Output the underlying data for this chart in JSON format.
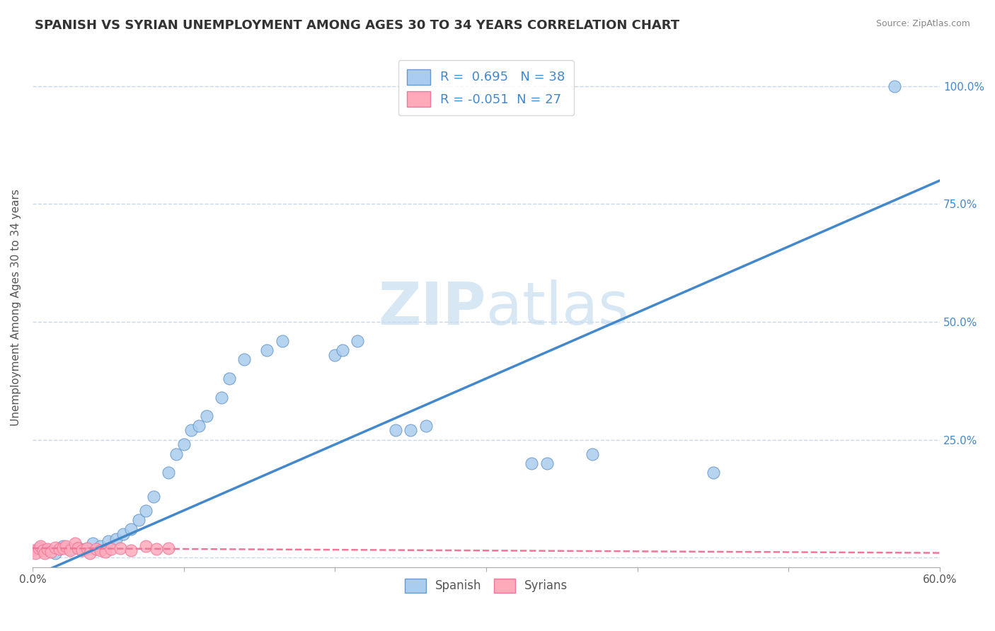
{
  "title": "SPANISH VS SYRIAN UNEMPLOYMENT AMONG AGES 30 TO 34 YEARS CORRELATION CHART",
  "source": "Source: ZipAtlas.com",
  "ylabel": "Unemployment Among Ages 30 to 34 years",
  "xlim": [
    0.0,
    0.6
  ],
  "ylim": [
    -0.02,
    1.08
  ],
  "xticks": [
    0.0,
    0.1,
    0.2,
    0.3,
    0.4,
    0.5,
    0.6
  ],
  "xticklabels": [
    "0.0%",
    "",
    "",
    "",
    "",
    "",
    "60.0%"
  ],
  "ytick_positions": [
    0.0,
    0.25,
    0.5,
    0.75,
    1.0
  ],
  "yticklabels": [
    "",
    "25.0%",
    "50.0%",
    "75.0%",
    "100.0%"
  ],
  "spanish_R": 0.695,
  "spanish_N": 38,
  "syrian_R": -0.051,
  "syrian_N": 27,
  "spanish_x": [
    0.005,
    0.01,
    0.015,
    0.02,
    0.025,
    0.03,
    0.035,
    0.04,
    0.045,
    0.05,
    0.055,
    0.06,
    0.065,
    0.07,
    0.075,
    0.08,
    0.09,
    0.095,
    0.1,
    0.105,
    0.11,
    0.115,
    0.125,
    0.13,
    0.14,
    0.155,
    0.165,
    0.2,
    0.205,
    0.215,
    0.24,
    0.25,
    0.26,
    0.33,
    0.34,
    0.37,
    0.45,
    0.57
  ],
  "spanish_y": [
    0.02,
    0.015,
    0.01,
    0.025,
    0.018,
    0.022,
    0.018,
    0.03,
    0.025,
    0.035,
    0.04,
    0.05,
    0.06,
    0.08,
    0.1,
    0.13,
    0.18,
    0.22,
    0.24,
    0.27,
    0.28,
    0.3,
    0.34,
    0.38,
    0.42,
    0.44,
    0.46,
    0.43,
    0.44,
    0.46,
    0.27,
    0.27,
    0.28,
    0.2,
    0.2,
    0.22,
    0.18,
    1.0
  ],
  "syrian_x": [
    0.0,
    0.002,
    0.004,
    0.005,
    0.007,
    0.008,
    0.01,
    0.012,
    0.015,
    0.018,
    0.02,
    0.022,
    0.025,
    0.028,
    0.03,
    0.033,
    0.036,
    0.038,
    0.042,
    0.045,
    0.048,
    0.052,
    0.058,
    0.065,
    0.075,
    0.082,
    0.09
  ],
  "syrian_y": [
    0.015,
    0.01,
    0.02,
    0.025,
    0.015,
    0.01,
    0.018,
    0.012,
    0.022,
    0.018,
    0.02,
    0.025,
    0.015,
    0.03,
    0.02,
    0.015,
    0.02,
    0.01,
    0.018,
    0.015,
    0.012,
    0.018,
    0.02,
    0.015,
    0.025,
    0.018,
    0.02
  ],
  "spanish_color": "#aaccee",
  "spanish_edge_color": "#6699cc",
  "syrian_color": "#ffaabb",
  "syrian_edge_color": "#ee7799",
  "trend_spanish_color": "#4488cc",
  "trend_syrian_color": "#ee7799",
  "legend_box_color": "#aaccee",
  "legend_box_color2": "#ffaabb",
  "legend_text_color": "#4488cc",
  "watermark_color": "#c8ddf0",
  "background_color": "#ffffff",
  "grid_color": "#c8d8e8",
  "title_fontsize": 13,
  "axis_label_fontsize": 11,
  "spanish_trend_x": [
    0.0,
    0.6
  ],
  "spanish_trend_y": [
    -0.04,
    0.8
  ],
  "syrian_trend_x": [
    0.0,
    0.6
  ],
  "syrian_trend_y": [
    0.02,
    0.01
  ]
}
